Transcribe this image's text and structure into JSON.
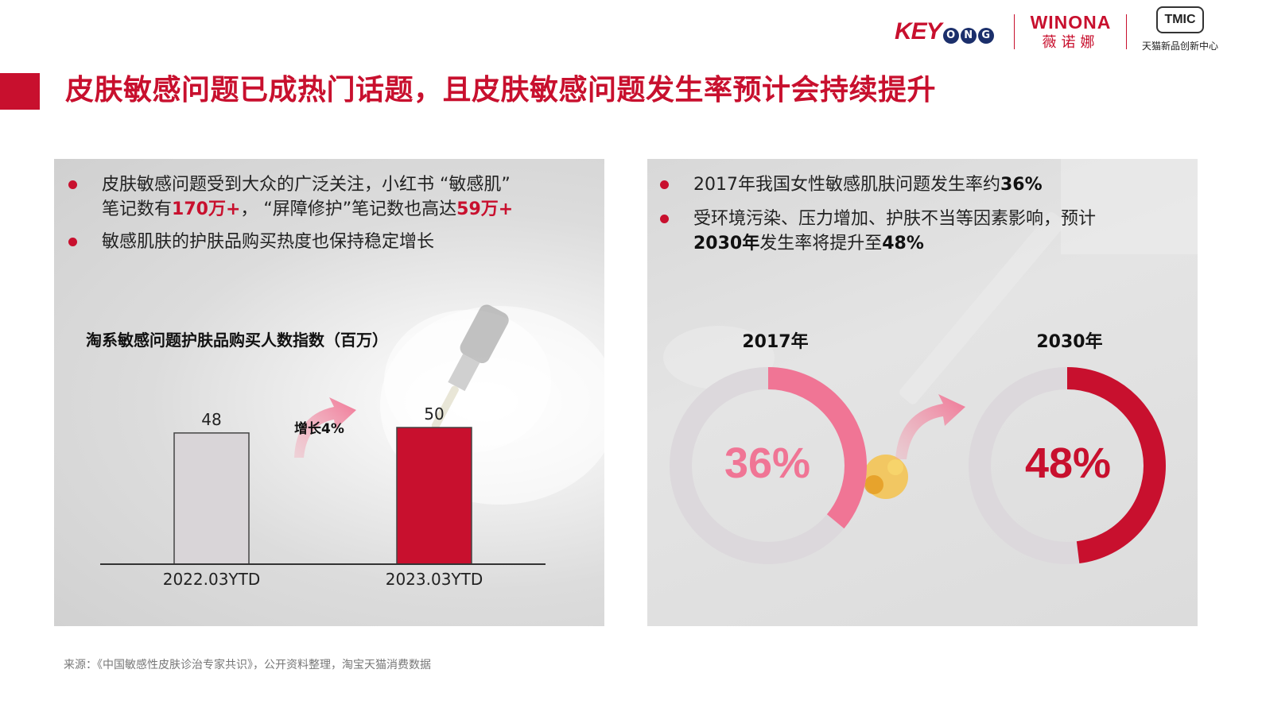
{
  "header": {
    "title": "皮肤敏感问题已成热门话题，且皮肤敏感问题发生率预计会持续提升",
    "logos": {
      "keyong": {
        "text": "KEY",
        "badges": [
          "O",
          "N",
          "G"
        ]
      },
      "winona": {
        "en": "WINONA",
        "zh": "薇诺娜"
      },
      "tmic": {
        "mark": "TMIC",
        "zh": "天猫新品创新中心"
      }
    },
    "accent": "#c8102e"
  },
  "left_panel": {
    "bullets": [
      {
        "parts": [
          {
            "t": "皮肤敏感问题受到大众的广泛关注，小红书 “敏感肌”"
          },
          {
            "t": "笔记数有",
            "br": true
          },
          {
            "t": "170万+",
            "style": "red"
          },
          {
            "t": "， “屏障修护”笔记数也高达"
          },
          {
            "t": "59万+",
            "style": "red"
          }
        ]
      },
      {
        "parts": [
          {
            "t": "敏感肌肤的护肤品购买热度也保持稳定增长"
          }
        ]
      }
    ],
    "annotation": "增长4%"
  },
  "right_panel": {
    "bullets": [
      {
        "parts": [
          {
            "t": "2017年我国女性敏感肌肤问题发生率约"
          },
          {
            "t": "36%",
            "style": "bold"
          }
        ]
      },
      {
        "parts": [
          {
            "t": "受环境污染、压力增加、护肤不当等因素影响，预计"
          },
          {
            "t": "2030年",
            "style": "bold",
            "br": true
          },
          {
            "t": "发生率将提升至"
          },
          {
            "t": "48%",
            "style": "bold"
          }
        ]
      }
    ]
  },
  "chart_data": [
    {
      "type": "bar",
      "title": "淘系敏感问题护肤品购买人数指数（百万）",
      "categories": [
        "2022.03YTD",
        "2023.03YTD"
      ],
      "values": [
        48,
        50
      ],
      "data_labels": [
        "48",
        "50"
      ],
      "colors": [
        "#d9d5d8",
        "#c8102e"
      ],
      "ylim": [
        0,
        50
      ],
      "grid": false,
      "legend": "none"
    },
    {
      "type": "pie",
      "variant": "donut",
      "title": "2017年",
      "values": [
        36,
        64
      ],
      "center_label": "36%",
      "colors": [
        "#f07595",
        "#dcd8dc"
      ]
    },
    {
      "type": "pie",
      "variant": "donut",
      "title": "2030年",
      "values": [
        48,
        52
      ],
      "center_label": "48%",
      "colors": [
        "#c8102e",
        "#dcd8dc"
      ]
    }
  ],
  "footer": {
    "source": "来源：《中国敏感性皮肤诊治专家共识》，公开资料整理，淘宝天猫消费数据"
  }
}
